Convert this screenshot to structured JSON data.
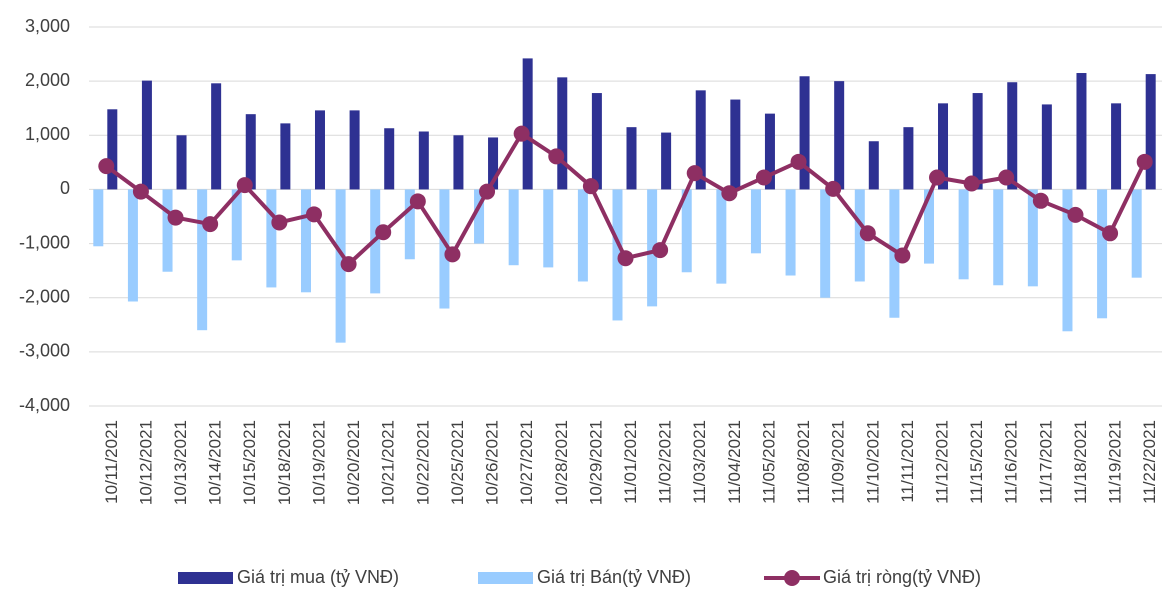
{
  "chart_data": {
    "type": "bar-line",
    "categories": [
      "10/11/2021",
      "10/12/2021",
      "10/13/2021",
      "10/14/2021",
      "10/15/2021",
      "10/18/2021",
      "10/19/2021",
      "10/20/2021",
      "10/21/2021",
      "10/22/2021",
      "10/25/2021",
      "10/26/2021",
      "10/27/2021",
      "10/28/2021",
      "10/29/2021",
      "11/01/2021",
      "11/02/2021",
      "11/03/2021",
      "11/04/2021",
      "11/05/2021",
      "11/08/2021",
      "11/09/2021",
      "11/10/2021",
      "11/11/2021",
      "11/12/2021",
      "11/15/2021",
      "11/16/2021",
      "11/17/2021",
      "11/18/2021",
      "11/19/2021",
      "11/22/2021"
    ],
    "series": [
      {
        "name": "Giá trị mua (tỷ VNĐ)",
        "type": "bar",
        "color": "#2e3192",
        "values": [
          1480,
          2010,
          1000,
          1960,
          1390,
          1220,
          1460,
          1460,
          1130,
          1070,
          1000,
          960,
          2420,
          2070,
          1780,
          1150,
          1050,
          1830,
          1660,
          1400,
          2090,
          2000,
          890,
          1150,
          1590,
          1780,
          1980,
          1570,
          2150,
          1590,
          2130
        ]
      },
      {
        "name": "Giá trị Bán(tỷ VNĐ)",
        "type": "bar",
        "color": "#99ccff",
        "values": [
          -1050,
          -2070,
          -1520,
          -2600,
          -1310,
          -1810,
          -1900,
          -2830,
          -1920,
          -1290,
          -2200,
          -1000,
          -1400,
          -1440,
          -1700,
          -2420,
          -2160,
          -1530,
          -1740,
          -1180,
          -1590,
          -2000,
          -1700,
          -2370,
          -1370,
          -1660,
          -1770,
          -1790,
          -2620,
          -2380,
          -1630
        ]
      },
      {
        "name": "Giá trị ròng(tỷ VNĐ)",
        "type": "line",
        "color": "#8e2f63",
        "values": [
          430,
          -40,
          -520,
          -640,
          80,
          -610,
          -460,
          -1380,
          -790,
          -220,
          -1200,
          -40,
          1030,
          610,
          60,
          -1270,
          -1120,
          300,
          -70,
          220,
          510,
          10,
          -810,
          -1220,
          220,
          110,
          220,
          -210,
          -470,
          -810,
          510
        ]
      }
    ],
    "ylim": [
      -4000,
      3000
    ],
    "yticks": [
      {
        "value": -4000,
        "label": "-4,000"
      },
      {
        "value": -3000,
        "label": "-3,000"
      },
      {
        "value": -2000,
        "label": "-2,000"
      },
      {
        "value": -1000,
        "label": "-1,000"
      },
      0,
      {
        "value": 1000,
        "label": "1,000"
      },
      {
        "value": 2000,
        "label": "2,000"
      },
      {
        "value": 3000,
        "label": "3,000"
      }
    ],
    "grid": true,
    "legend": "bottom"
  }
}
